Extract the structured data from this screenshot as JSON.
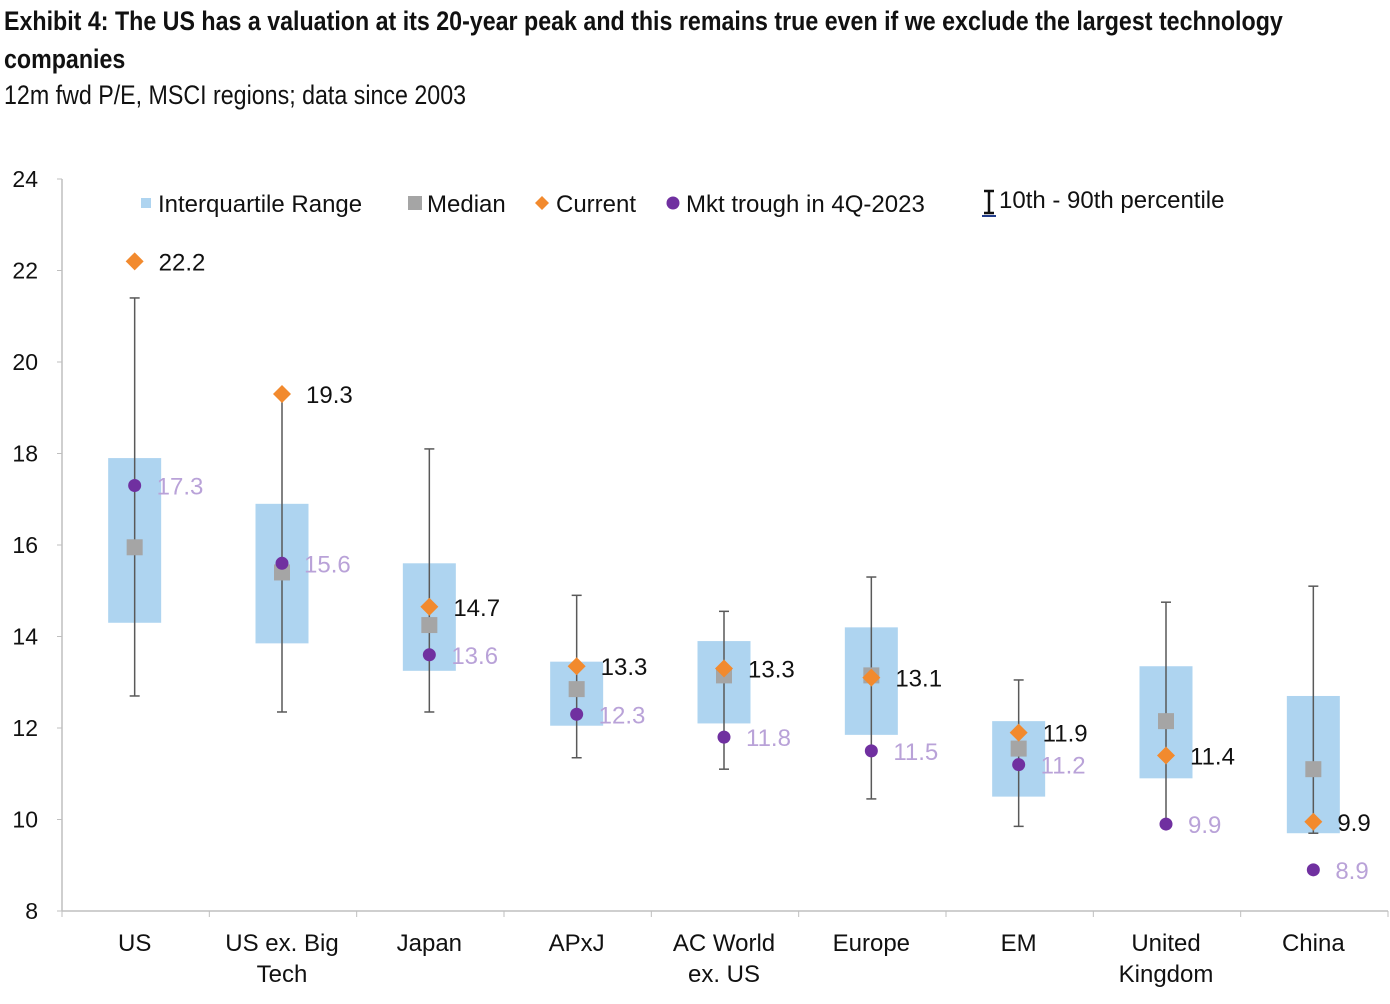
{
  "title": "Exhibit 4: The US has a valuation at its 20-year peak and this remains true even if we exclude the largest technology companies",
  "subtitle": "12m fwd P/E, MSCI regions; data since 2003",
  "colors": {
    "iqr": "#aed4f0",
    "median": "#a5a5a5",
    "current": "#f28a2e",
    "trough": "#7030a0",
    "trough_label": "#b9a2d8",
    "whisker": "#595959",
    "whisker_legend": "#1f3a8a"
  },
  "chart_data": {
    "type": "box",
    "ylim": [
      8,
      24
    ],
    "yticks": [
      8,
      10,
      12,
      14,
      16,
      18,
      20,
      22,
      24
    ],
    "legend": {
      "placement": "top",
      "iqr": "Interquartile Range",
      "median": "Median",
      "current": "Current",
      "trough": "Mkt trough in 4Q-2023",
      "whisker": "10th - 90th percentile"
    },
    "categories": [
      {
        "label": [
          "US"
        ],
        "p10": 12.7,
        "q1": 14.3,
        "median": 15.95,
        "q3": 17.9,
        "p90": 21.4,
        "current": 22.2,
        "trough": 17.3,
        "current_label": "22.2",
        "trough_label": "17.3"
      },
      {
        "label": [
          "US ex. Big",
          "Tech"
        ],
        "p10": 12.35,
        "q1": 13.85,
        "median": 15.4,
        "q3": 16.9,
        "p90": 19.3,
        "current": 19.3,
        "trough": 15.6,
        "current_label": "19.3",
        "trough_label": "15.6"
      },
      {
        "label": [
          "Japan"
        ],
        "p10": 12.35,
        "q1": 13.25,
        "median": 14.25,
        "q3": 15.6,
        "p90": 18.1,
        "current": 14.65,
        "trough": 13.6,
        "current_label": "14.7",
        "trough_label": "13.6"
      },
      {
        "label": [
          "APxJ"
        ],
        "p10": 11.35,
        "q1": 12.05,
        "median": 12.85,
        "q3": 13.45,
        "p90": 14.9,
        "current": 13.35,
        "trough": 12.3,
        "current_label": "13.3",
        "trough_label": "12.3"
      },
      {
        "label": [
          "AC World",
          "ex. US"
        ],
        "p10": 11.1,
        "q1": 12.1,
        "median": 13.15,
        "q3": 13.9,
        "p90": 14.55,
        "current": 13.3,
        "trough": 11.8,
        "current_label": "13.3",
        "trough_label": "11.8"
      },
      {
        "label": [
          "Europe"
        ],
        "p10": 10.45,
        "q1": 11.85,
        "median": 13.15,
        "q3": 14.2,
        "p90": 15.3,
        "current": 13.1,
        "trough": 11.5,
        "current_label": "13.1",
        "trough_label": "11.5"
      },
      {
        "label": [
          "EM"
        ],
        "p10": 9.85,
        "q1": 10.5,
        "median": 11.55,
        "q3": 12.15,
        "p90": 13.05,
        "current": 11.9,
        "trough": 11.2,
        "current_label": "11.9",
        "trough_label": "11.2"
      },
      {
        "label": [
          "United",
          "Kingdom"
        ],
        "p10": 9.9,
        "q1": 10.9,
        "median": 12.15,
        "q3": 13.35,
        "p90": 14.75,
        "current": 11.4,
        "trough": 9.9,
        "current_label": "11.4",
        "trough_label": "9.9"
      },
      {
        "label": [
          "China"
        ],
        "p10": 9.7,
        "q1": 9.7,
        "median": 11.1,
        "q3": 12.7,
        "p90": 15.1,
        "current": 9.95,
        "trough": 8.9,
        "current_label": "9.9",
        "trough_label": "8.9"
      }
    ]
  }
}
